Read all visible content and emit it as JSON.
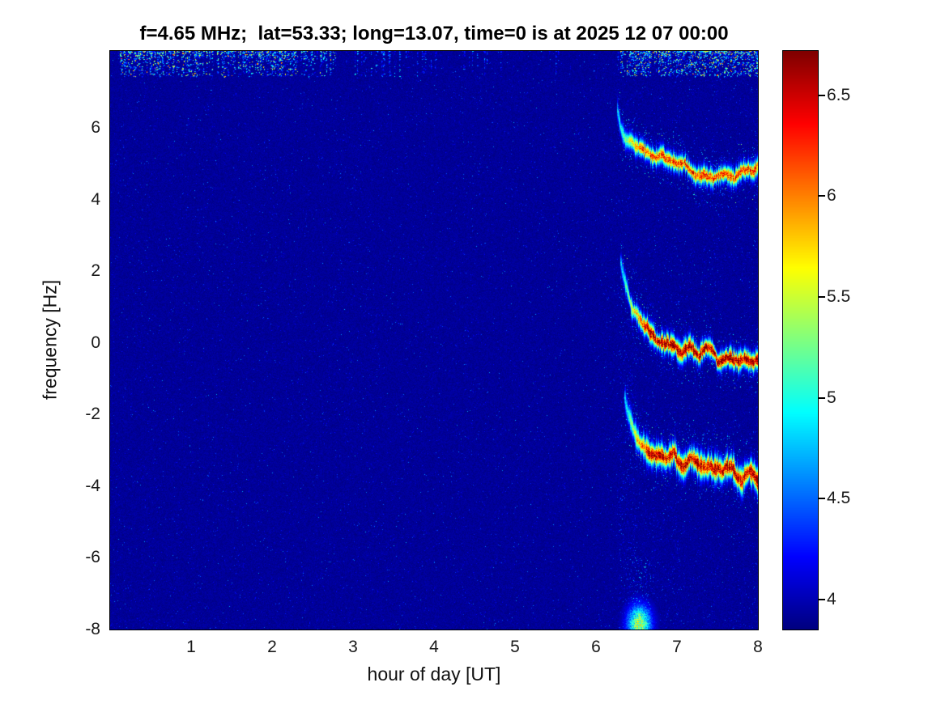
{
  "chart_data": {
    "type": "heatmap",
    "colormap": "jet",
    "title": "f=4.65 MHz;  lat=53.33; long=13.07, time=0 is at 2025 12 07 00:00",
    "xlabel": "hour of day [UT]",
    "ylabel": "frequency [Hz]",
    "xlim": [
      0,
      8
    ],
    "ylim": [
      -8,
      8.15
    ],
    "x_ticks": [
      1,
      2,
      3,
      4,
      5,
      6,
      7,
      8
    ],
    "y_ticks": [
      -8,
      -6,
      -4,
      -2,
      0,
      2,
      4,
      6
    ],
    "grid": false,
    "background_level": 3.9,
    "colorbar": {
      "position": "right",
      "min": 3.85,
      "max": 6.72,
      "ticks": [
        4,
        4.5,
        5,
        5.5,
        6,
        6.5
      ]
    },
    "noise": {
      "speckle_probability": 0.018,
      "speckle_max": 4.75
    },
    "features": {
      "top_band": {
        "y_range": [
          7.45,
          8.15
        ],
        "segments": [
          {
            "x_range": [
              0.12,
              0.55
            ],
            "density": 0.95,
            "max_value": 6.7
          },
          {
            "x_range": [
              0.55,
              1.05
            ],
            "density": 0.9,
            "max_value": 6.7
          },
          {
            "x_range": [
              1.05,
              1.75
            ],
            "density": 0.75,
            "max_value": 6.4
          },
          {
            "x_range": [
              1.75,
              2.3
            ],
            "density": 0.85,
            "max_value": 6.5
          },
          {
            "x_range": [
              2.3,
              2.8
            ],
            "density": 0.6,
            "max_value": 6.0
          },
          {
            "x_range": [
              2.8,
              3.6
            ],
            "density": 0.2,
            "max_value": 5.3
          },
          {
            "x_range": [
              3.6,
              6.3
            ],
            "density": 0.08,
            "max_value": 4.9
          },
          {
            "x_range": [
              6.3,
              7.1
            ],
            "density": 0.9,
            "max_value": 6.7
          },
          {
            "x_range": [
              7.1,
              8.0
            ],
            "density": 0.95,
            "max_value": 6.7
          }
        ]
      },
      "traces": [
        {
          "name": "upper-doppler-trace",
          "max_value": 6.25,
          "width_hz": 0.13,
          "ramp_in": 0.3,
          "points": [
            [
              6.26,
              6.55
            ],
            [
              6.31,
              6.0
            ],
            [
              6.38,
              5.55
            ],
            [
              6.5,
              5.25
            ],
            [
              6.62,
              5.1
            ],
            [
              6.75,
              5.0
            ],
            [
              6.9,
              4.95
            ],
            [
              7.0,
              4.75
            ],
            [
              7.1,
              4.95
            ],
            [
              7.2,
              4.7
            ],
            [
              7.32,
              4.9
            ],
            [
              7.45,
              4.65
            ],
            [
              7.58,
              4.8
            ],
            [
              7.7,
              4.6
            ],
            [
              7.82,
              4.75
            ],
            [
              7.92,
              4.6
            ],
            [
              8.0,
              4.7
            ]
          ]
        },
        {
          "name": "middle-doppler-trace",
          "max_value": 6.72,
          "width_hz": 0.14,
          "ramp_in": 0.35,
          "points": [
            [
              6.3,
              2.3
            ],
            [
              6.36,
              1.7
            ],
            [
              6.44,
              1.1
            ],
            [
              6.54,
              0.7
            ],
            [
              6.66,
              0.45
            ],
            [
              6.8,
              0.3
            ],
            [
              6.95,
              0.2
            ],
            [
              7.05,
              0.0
            ],
            [
              7.15,
              0.15
            ],
            [
              7.28,
              -0.1
            ],
            [
              7.4,
              0.05
            ],
            [
              7.5,
              -0.25
            ],
            [
              7.62,
              -0.1
            ],
            [
              7.75,
              -0.3
            ],
            [
              7.85,
              -0.15
            ],
            [
              7.95,
              -0.35
            ],
            [
              8.0,
              -0.3
            ]
          ]
        },
        {
          "name": "lower-doppler-trace",
          "max_value": 6.6,
          "width_hz": 0.18,
          "ramp_in": 0.3,
          "points": [
            [
              6.35,
              -1.5
            ],
            [
              6.42,
              -2.1
            ],
            [
              6.5,
              -2.6
            ],
            [
              6.6,
              -2.95
            ],
            [
              6.72,
              -3.15
            ],
            [
              6.85,
              -3.3
            ],
            [
              6.95,
              -3.15
            ],
            [
              7.05,
              -3.55
            ],
            [
              7.18,
              -3.35
            ],
            [
              7.3,
              -3.65
            ],
            [
              7.42,
              -3.45
            ],
            [
              7.55,
              -3.8
            ],
            [
              7.68,
              -3.6
            ],
            [
              7.8,
              -3.95
            ],
            [
              7.9,
              -3.75
            ],
            [
              8.0,
              -3.9
            ]
          ]
        }
      ],
      "streaks": [
        {
          "x_range": [
            6.28,
            6.5
          ],
          "y_range": [
            -8,
            2.2
          ],
          "density": 0.04,
          "max_value": 4.8
        },
        {
          "x_range": [
            6.45,
            6.68
          ],
          "y_range": [
            -8,
            -6.0
          ],
          "density": 0.1,
          "max_value": 5.1
        },
        {
          "x_range": [
            6.6,
            7.05
          ],
          "y_range": [
            -7.0,
            -4.6
          ],
          "density": 0.025,
          "max_value": 4.6
        }
      ],
      "blobs": [
        {
          "x": 6.53,
          "y": -7.85,
          "rx": 0.1,
          "ry": 0.35,
          "value": 5.4
        }
      ],
      "right_noise": {
        "x_range": [
          6.25,
          8.0
        ],
        "probability": 0.012,
        "max_value": 4.6
      }
    }
  }
}
